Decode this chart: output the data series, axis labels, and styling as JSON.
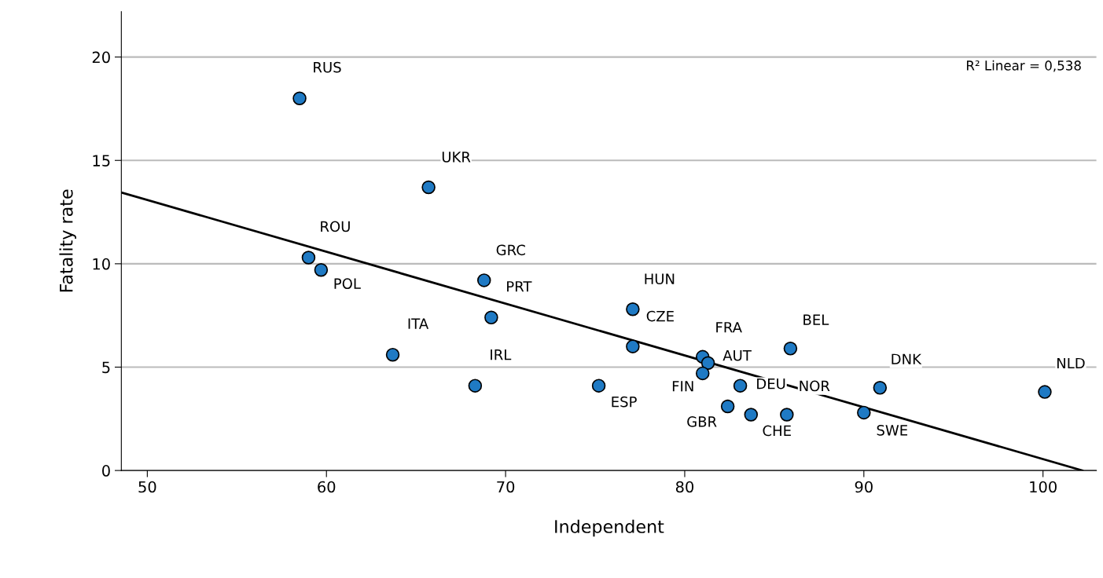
{
  "chart_data": {
    "type": "scatter",
    "xlabel": "Independent",
    "ylabel": "Fatality rate",
    "xlim": [
      48.55,
      102.98
    ],
    "ylim": [
      0,
      22.2
    ],
    "xticks": [
      50,
      60,
      70,
      80,
      90,
      100
    ],
    "yticks": [
      0,
      5,
      10,
      15,
      20
    ],
    "grid": "y",
    "series": [
      {
        "marker": "circle",
        "color": "#1f7ac4",
        "x": [
          58.5,
          65.7,
          59.0,
          59.7,
          68.8,
          69.2,
          63.7,
          68.3,
          75.2,
          77.1,
          77.1,
          81.0,
          81.3,
          81.0,
          82.4,
          83.1,
          83.7,
          85.7,
          85.9,
          90.0,
          90.9,
          100.1
        ],
        "values": [
          18.0,
          13.7,
          10.3,
          9.7,
          9.2,
          7.4,
          5.6,
          4.1,
          4.1,
          7.8,
          6.0,
          5.5,
          5.2,
          4.7,
          3.1,
          4.1,
          2.7,
          2.7,
          5.9,
          2.8,
          4.0,
          3.8
        ]
      },
      {
        "type": "line",
        "color": "#000000",
        "x": [
          48.55,
          102.2
        ],
        "values": [
          13.45,
          0
        ]
      }
    ],
    "annotations": [
      {
        "text": "RUS",
        "x": 58.5,
        "y": 18.0
      },
      {
        "text": "UKR",
        "x": 65.7,
        "y": 13.7
      },
      {
        "text": "ROU",
        "x": 59.0,
        "y": 10.3
      },
      {
        "text": "POL",
        "x": 59.7,
        "y": 9.7
      },
      {
        "text": "GRC",
        "x": 68.8,
        "y": 9.2
      },
      {
        "text": "PRT",
        "x": 69.2,
        "y": 7.4
      },
      {
        "text": "ITA",
        "x": 63.7,
        "y": 5.6
      },
      {
        "text": "IRL",
        "x": 68.3,
        "y": 4.1
      },
      {
        "text": "ESP",
        "x": 75.2,
        "y": 4.1
      },
      {
        "text": "HUN",
        "x": 77.1,
        "y": 7.8
      },
      {
        "text": "CZE",
        "x": 77.1,
        "y": 6.0
      },
      {
        "text": "FRA",
        "x": 81.0,
        "y": 5.5
      },
      {
        "text": "AUT",
        "x": 81.3,
        "y": 5.2
      },
      {
        "text": "FIN",
        "x": 81.0,
        "y": 4.7
      },
      {
        "text": "GBR",
        "x": 82.4,
        "y": 3.1
      },
      {
        "text": "DEU",
        "x": 83.1,
        "y": 4.1
      },
      {
        "text": "CHE",
        "x": 83.7,
        "y": 2.7
      },
      {
        "text": "NOR",
        "x": 85.7,
        "y": 2.7
      },
      {
        "text": "BEL",
        "x": 85.9,
        "y": 5.9
      },
      {
        "text": "SWE",
        "x": 90.0,
        "y": 2.8
      },
      {
        "text": "DNK",
        "x": 90.9,
        "y": 4.0
      },
      {
        "text": "NLD",
        "x": 100.1,
        "y": 3.8
      },
      "R² Linear = 0,538"
    ]
  }
}
